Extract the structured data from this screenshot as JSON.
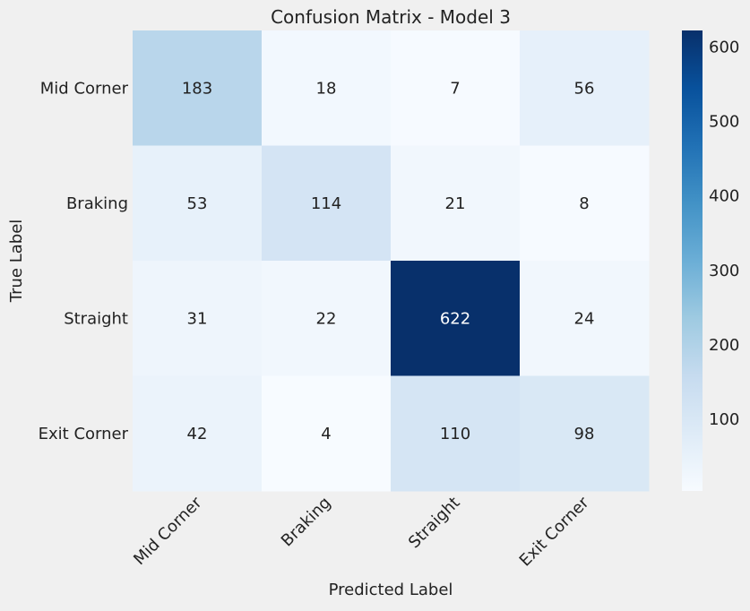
{
  "chart_data": {
    "type": "heatmap",
    "title": "Confusion Matrix - Model 3",
    "xlabel": "Predicted Label",
    "ylabel": "True Label",
    "x_categories": [
      "Mid Corner",
      "Braking",
      "Straight",
      "Exit Corner"
    ],
    "y_categories": [
      "Mid Corner",
      "Braking",
      "Straight",
      "Exit Corner"
    ],
    "values": [
      [
        183,
        18,
        7,
        56
      ],
      [
        53,
        114,
        21,
        8
      ],
      [
        31,
        22,
        622,
        24
      ],
      [
        42,
        4,
        110,
        98
      ]
    ],
    "colormap": "Blues",
    "colorbar": {
      "ticks": [
        100,
        200,
        300,
        400,
        500,
        600
      ],
      "range": [
        4,
        622
      ]
    },
    "grid": false
  },
  "colors": {
    "background": "#f0f0f0",
    "text": "#222222",
    "annotation_dark_text": "#222222",
    "annotation_light_text": "#ffffff"
  }
}
